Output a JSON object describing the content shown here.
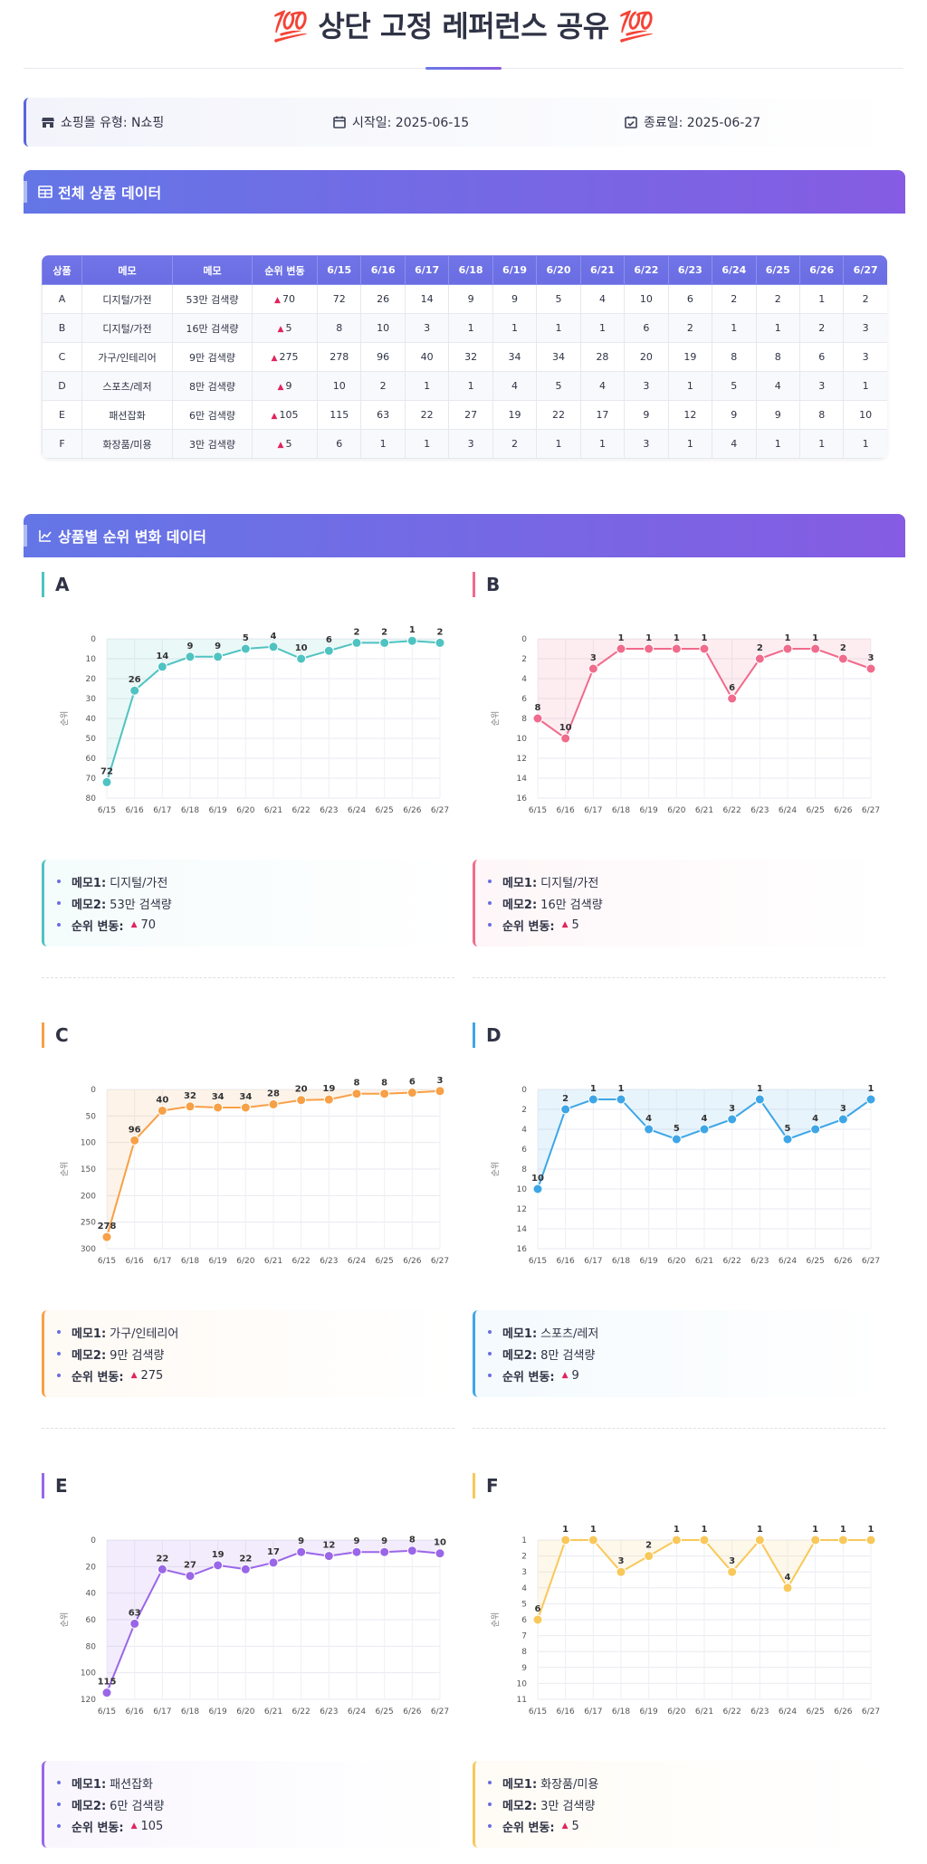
{
  "page": {
    "title": "💯 상단 고정 레퍼런스 공유 💯"
  },
  "info": {
    "shop": "쇼핑몰 유형: N쇼핑",
    "start": "시작일: 2025-06-15",
    "end": "종료일: 2025-06-27"
  },
  "sections": {
    "table_title": "전체 상품 데이터",
    "charts_title": "상품별 순위 변화 데이터"
  },
  "table": {
    "headers": [
      "상품",
      "메모",
      "메모",
      "순위 변동",
      "6/15",
      "6/16",
      "6/17",
      "6/18",
      "6/19",
      "6/20",
      "6/21",
      "6/22",
      "6/23",
      "6/24",
      "6/25",
      "6/26",
      "6/27"
    ],
    "rows": [
      [
        "A",
        "디지털/가전",
        "53만 검색량",
        "70",
        "72",
        "26",
        "14",
        "9",
        "9",
        "5",
        "4",
        "10",
        "6",
        "2",
        "2",
        "1",
        "2"
      ],
      [
        "B",
        "디지털/가전",
        "16만 검색량",
        "5",
        "8",
        "10",
        "3",
        "1",
        "1",
        "1",
        "1",
        "6",
        "2",
        "1",
        "1",
        "2",
        "3"
      ],
      [
        "C",
        "가구/인테리어",
        "9만 검색량",
        "275",
        "278",
        "96",
        "40",
        "32",
        "34",
        "34",
        "28",
        "20",
        "19",
        "8",
        "8",
        "6",
        "3"
      ],
      [
        "D",
        "스포츠/레저",
        "8만 검색량",
        "9",
        "10",
        "2",
        "1",
        "1",
        "4",
        "5",
        "4",
        "3",
        "1",
        "5",
        "4",
        "3",
        "1"
      ],
      [
        "E",
        "패션잡화",
        "6만 검색량",
        "105",
        "115",
        "63",
        "22",
        "27",
        "19",
        "22",
        "17",
        "9",
        "12",
        "9",
        "9",
        "8",
        "10"
      ],
      [
        "F",
        "화장품/미용",
        "3만 검색량",
        "5",
        "6",
        "1",
        "1",
        "3",
        "2",
        "1",
        "1",
        "3",
        "1",
        "4",
        "1",
        "1",
        "1"
      ]
    ]
  },
  "labels": {
    "memo1": "메모1:",
    "memo2": "메모2:",
    "rank_change": "순위 변동:",
    "up_symbol": "▲"
  },
  "chart_data": [
    {
      "type": "line",
      "title": "A",
      "color": "#4fc3c1",
      "ylabel": "순위",
      "reversed_y": true,
      "ylim": [
        0,
        80
      ],
      "yticks": [
        0,
        10,
        20,
        30,
        40,
        50,
        60,
        70,
        80
      ],
      "x": [
        "6/15",
        "6/16",
        "6/17",
        "6/18",
        "6/19",
        "6/20",
        "6/21",
        "6/22",
        "6/23",
        "6/24",
        "6/25",
        "6/26",
        "6/27"
      ],
      "values": [
        72,
        26,
        14,
        9,
        9,
        5,
        4,
        10,
        6,
        2,
        2,
        1,
        2
      ],
      "memo1": "디지털/가전",
      "memo2": "53만 검색량",
      "change": "70"
    },
    {
      "type": "line",
      "title": "B",
      "color": "#f06b8c",
      "ylabel": "순위",
      "reversed_y": true,
      "ylim": [
        0,
        16
      ],
      "yticks": [
        0,
        2,
        4,
        6,
        8,
        10,
        12,
        14,
        16
      ],
      "x": [
        "6/15",
        "6/16",
        "6/17",
        "6/18",
        "6/19",
        "6/20",
        "6/21",
        "6/22",
        "6/23",
        "6/24",
        "6/25",
        "6/26",
        "6/27"
      ],
      "values": [
        8,
        10,
        3,
        1,
        1,
        1,
        1,
        6,
        2,
        1,
        1,
        2,
        3
      ],
      "memo1": "디지털/가전",
      "memo2": "16만 검색량",
      "change": "5"
    },
    {
      "type": "line",
      "title": "C",
      "color": "#f7a046",
      "ylabel": "순위",
      "reversed_y": true,
      "ylim": [
        0,
        300
      ],
      "yticks": [
        0,
        50,
        100,
        150,
        200,
        250,
        300
      ],
      "x": [
        "6/15",
        "6/16",
        "6/17",
        "6/18",
        "6/19",
        "6/20",
        "6/21",
        "6/22",
        "6/23",
        "6/24",
        "6/25",
        "6/26",
        "6/27"
      ],
      "values": [
        278,
        96,
        40,
        32,
        34,
        34,
        28,
        20,
        19,
        8,
        8,
        6,
        3
      ],
      "memo1": "가구/인테리어",
      "memo2": "9만 검색량",
      "change": "275"
    },
    {
      "type": "line",
      "title": "D",
      "color": "#3ea6e6",
      "ylabel": "순위",
      "reversed_y": true,
      "ylim": [
        0,
        16
      ],
      "yticks": [
        0,
        2,
        4,
        6,
        8,
        10,
        12,
        14,
        16
      ],
      "x": [
        "6/15",
        "6/16",
        "6/17",
        "6/18",
        "6/19",
        "6/20",
        "6/21",
        "6/22",
        "6/23",
        "6/24",
        "6/25",
        "6/26",
        "6/27"
      ],
      "values": [
        10,
        2,
        1,
        1,
        4,
        5,
        4,
        3,
        1,
        5,
        4,
        3,
        1
      ],
      "memo1": "스포츠/레저",
      "memo2": "8만 검색량",
      "change": "9"
    },
    {
      "type": "line",
      "title": "E",
      "color": "#9a66e8",
      "ylabel": "순위",
      "reversed_y": true,
      "ylim": [
        0,
        120
      ],
      "yticks": [
        0,
        20,
        40,
        60,
        80,
        100,
        120
      ],
      "x": [
        "6/15",
        "6/16",
        "6/17",
        "6/18",
        "6/19",
        "6/20",
        "6/21",
        "6/22",
        "6/23",
        "6/24",
        "6/25",
        "6/26",
        "6/27"
      ],
      "values": [
        115,
        63,
        22,
        27,
        19,
        22,
        17,
        9,
        12,
        9,
        9,
        8,
        10
      ],
      "memo1": "패션잡화",
      "memo2": "6만 검색량",
      "change": "105"
    },
    {
      "type": "line",
      "title": "F",
      "color": "#f8c85a",
      "ylabel": "순위",
      "reversed_y": true,
      "ylim": [
        1,
        11
      ],
      "yticks": [
        1,
        2,
        3,
        4,
        5,
        6,
        7,
        8,
        9,
        10,
        11
      ],
      "x": [
        "6/15",
        "6/16",
        "6/17",
        "6/18",
        "6/19",
        "6/20",
        "6/21",
        "6/22",
        "6/23",
        "6/24",
        "6/25",
        "6/26",
        "6/27"
      ],
      "values": [
        6,
        1,
        1,
        3,
        2,
        1,
        1,
        3,
        1,
        4,
        1,
        1,
        1
      ],
      "memo1": "화장품/미용",
      "memo2": "3만 검색량",
      "change": "5"
    }
  ]
}
